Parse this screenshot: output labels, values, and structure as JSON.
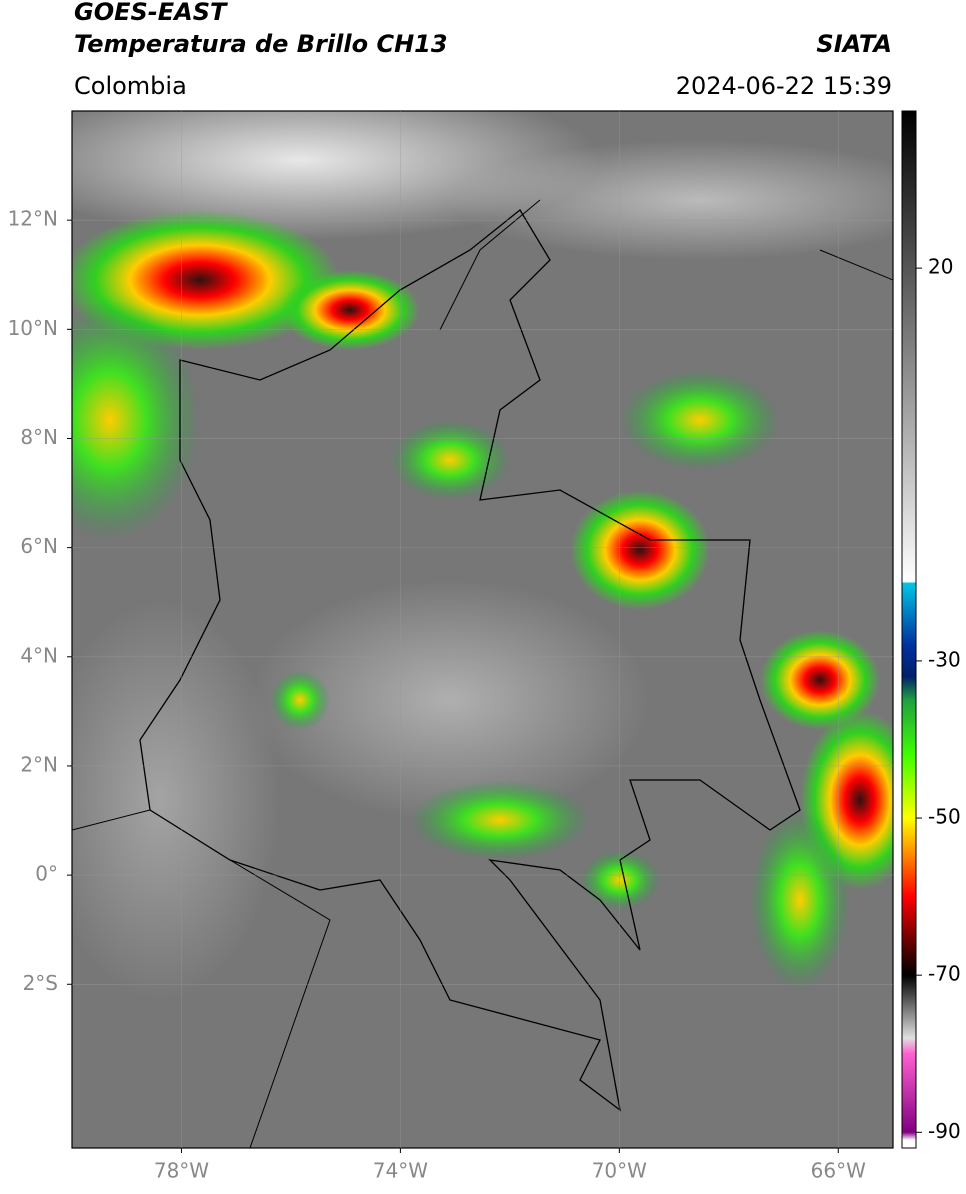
{
  "header": {
    "title": "GOES-EAST",
    "subtitle": "Temperatura de Brillo CH13",
    "region": "Colombia",
    "source": "SIATA",
    "datetime": "2024-06-22 15:39"
  },
  "map": {
    "lonlim": [
      -80,
      -65
    ],
    "latlim": [
      -5,
      14
    ],
    "xticks": [
      {
        "value": -78,
        "label": "78°W"
      },
      {
        "value": -74,
        "label": "74°W"
      },
      {
        "value": -70,
        "label": "70°W"
      },
      {
        "value": -66,
        "label": "66°W"
      }
    ],
    "yticks": [
      {
        "value": 12,
        "label": "12°N"
      },
      {
        "value": 10,
        "label": "10°N"
      },
      {
        "value": 8,
        "label": "8°N"
      },
      {
        "value": 6,
        "label": "6°N"
      },
      {
        "value": 4,
        "label": "4°N"
      },
      {
        "value": 2,
        "label": "2°N"
      },
      {
        "value": 0,
        "label": "0°"
      },
      {
        "value": -2,
        "label": "2°S"
      }
    ],
    "grid": true
  },
  "colorbar": {
    "lim": [
      -92,
      40
    ],
    "ticks": [
      20,
      -30,
      -50,
      -70,
      -90
    ],
    "colormap": [
      {
        "value": 40,
        "color": "#000000"
      },
      {
        "value": -20,
        "color": "#ffffff"
      },
      {
        "value": -20,
        "color": "#00c8e6"
      },
      {
        "value": -28,
        "color": "#0030a0"
      },
      {
        "value": -32,
        "color": "#00206a"
      },
      {
        "value": -35,
        "color": "#20a040"
      },
      {
        "value": -42,
        "color": "#40ff00"
      },
      {
        "value": -50,
        "color": "#ffff00"
      },
      {
        "value": -55,
        "color": "#ff8000"
      },
      {
        "value": -60,
        "color": "#ff0000"
      },
      {
        "value": -66,
        "color": "#600000"
      },
      {
        "value": -70,
        "color": "#000000"
      },
      {
        "value": -78,
        "color": "#e0e0e0"
      },
      {
        "value": -80,
        "color": "#ff60d0"
      },
      {
        "value": -90,
        "color": "#800080"
      },
      {
        "value": -91,
        "color": "#ffffff"
      }
    ]
  }
}
